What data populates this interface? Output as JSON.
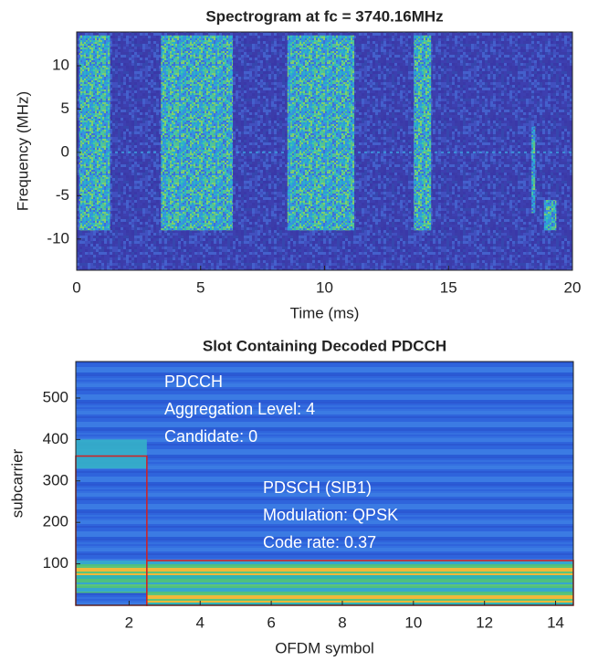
{
  "chart_data": [
    {
      "type": "spectrogram",
      "title": "Spectrogram at fc = 3740.16MHz",
      "x_label": "Time (ms)",
      "y_label": "Frequency (MHz)",
      "xlim": [
        0,
        20
      ],
      "ylim": [
        -13.6,
        13.9
      ],
      "xticks": [
        0,
        5,
        10,
        15,
        20
      ],
      "yticks": [
        -10,
        -5,
        0,
        5,
        10
      ],
      "bursts": [
        {
          "t": [
            0.1,
            1.35
          ],
          "f": [
            -9,
            13.5
          ]
        },
        {
          "t": [
            3.4,
            6.3
          ],
          "f": [
            -9,
            13.5
          ]
        },
        {
          "t": [
            8.5,
            11.2
          ],
          "f": [
            -9,
            13.5
          ]
        },
        {
          "t": [
            13.6,
            14.3
          ],
          "f": [
            -9,
            13.5
          ]
        },
        {
          "t": [
            18.35,
            18.5
          ],
          "f": [
            -7,
            3
          ]
        },
        {
          "t": [
            18.85,
            19.35
          ],
          "f": [
            -9,
            -5.5
          ]
        }
      ]
    },
    {
      "type": "resource-grid",
      "title": "Slot Containing Decoded PDCCH",
      "x_label": "OFDM symbol",
      "y_label": "subcarrier",
      "xlim": [
        0.5,
        14.5
      ],
      "ylim": [
        0,
        588
      ],
      "xticks": [
        2,
        4,
        6,
        8,
        10,
        12,
        14
      ],
      "yticks": [
        100,
        200,
        300,
        400,
        500
      ],
      "regions": [
        {
          "name": "PDCCH",
          "x": [
            0.5,
            2.5
          ],
          "y": [
            0,
            360
          ],
          "lines": [
            "Aggregation Level: 4",
            "Candidate: 0"
          ]
        },
        {
          "name": "PDSCH (SIB1)",
          "x": [
            2.5,
            14.5
          ],
          "y": [
            0,
            108
          ],
          "lines": [
            "Modulation: QPSK",
            "Code rate: 0.37"
          ]
        }
      ],
      "color": "#d42020"
    }
  ]
}
